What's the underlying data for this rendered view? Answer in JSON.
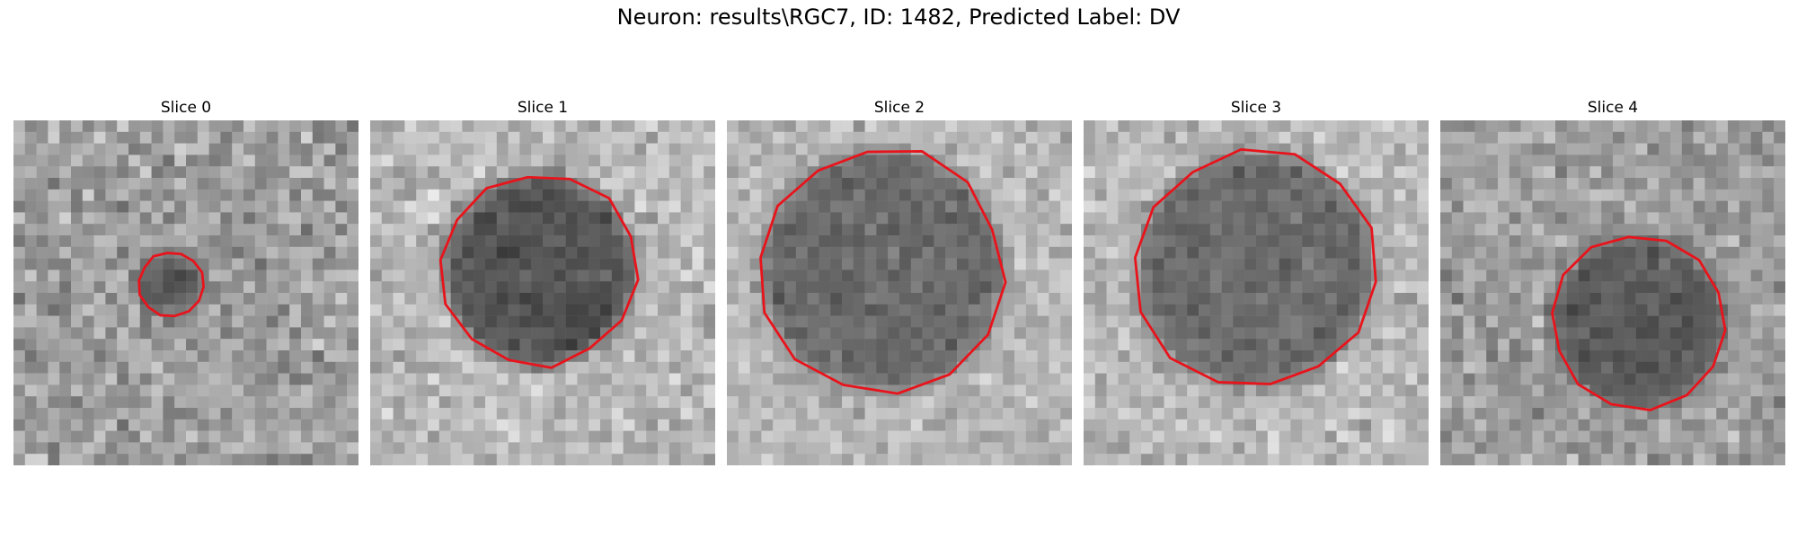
{
  "figure": {
    "title": "Neuron: results\\RGC7, ID: 1482, Predicted Label: DV"
  },
  "panels": [
    {
      "title": "Slice 0"
    },
    {
      "title": "Slice 1"
    },
    {
      "title": "Slice 2"
    },
    {
      "title": "Slice 3"
    },
    {
      "title": "Slice 4"
    }
  ],
  "colors": {
    "contour": "#e8141c",
    "background": "#ffffff"
  }
}
